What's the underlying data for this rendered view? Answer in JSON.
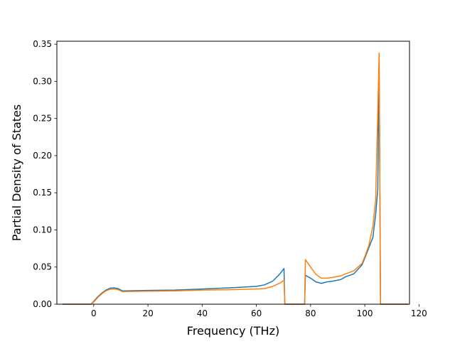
{
  "chart_data": {
    "type": "line",
    "xlabel": "Frequency (THz)",
    "ylabel": "Partial Density of States",
    "xlim": [
      -13.6,
      116.5
    ],
    "ylim": [
      0.0,
      0.354
    ],
    "xticks": [
      0,
      20,
      40,
      60,
      80,
      100,
      120
    ],
    "yticks": [
      0.0,
      0.05,
      0.1,
      0.15,
      0.2,
      0.25,
      0.3,
      0.35
    ],
    "xtick_labels": [
      "0",
      "20",
      "40",
      "60",
      "80",
      "100",
      "120"
    ],
    "ytick_labels": [
      "0.00",
      "0.05",
      "0.10",
      "0.15",
      "0.20",
      "0.25",
      "0.30",
      "0.35"
    ],
    "grid": false,
    "legend": "none",
    "series": [
      {
        "color": "#1f77b4",
        "points": [
          [
            -11.5,
            0.0
          ],
          [
            -1.0,
            0.0
          ],
          [
            0.0,
            0.004
          ],
          [
            1.5,
            0.01
          ],
          [
            3.0,
            0.015
          ],
          [
            4.5,
            0.019
          ],
          [
            6.0,
            0.0215
          ],
          [
            7.5,
            0.022
          ],
          [
            9.0,
            0.021
          ],
          [
            10.5,
            0.018
          ],
          [
            20,
            0.0185
          ],
          [
            30,
            0.019
          ],
          [
            40,
            0.0205
          ],
          [
            50,
            0.022
          ],
          [
            55,
            0.023
          ],
          [
            60,
            0.024
          ],
          [
            63,
            0.026
          ],
          [
            66,
            0.031
          ],
          [
            68.5,
            0.04
          ],
          [
            70.2,
            0.048
          ],
          [
            70.5,
            0.0
          ],
          [
            77.8,
            0.0
          ],
          [
            78.1,
            0.039
          ],
          [
            80,
            0.035
          ],
          [
            82,
            0.03
          ],
          [
            84,
            0.028
          ],
          [
            86,
            0.03
          ],
          [
            88,
            0.031
          ],
          [
            91,
            0.033
          ],
          [
            93,
            0.037
          ],
          [
            96,
            0.041
          ],
          [
            99,
            0.053
          ],
          [
            100,
            0.062
          ],
          [
            101.5,
            0.076
          ],
          [
            103,
            0.09
          ],
          [
            104,
            0.12
          ],
          [
            104.8,
            0.155
          ],
          [
            105.3,
            0.33
          ],
          [
            105.8,
            0.0
          ],
          [
            116,
            0.0
          ]
        ]
      },
      {
        "color": "#ff7f0e",
        "points": [
          [
            -11.5,
            0.0
          ],
          [
            -1.0,
            0.0
          ],
          [
            0.0,
            0.003
          ],
          [
            1.5,
            0.009
          ],
          [
            3.0,
            0.014
          ],
          [
            4.5,
            0.018
          ],
          [
            6.0,
            0.02
          ],
          [
            7.5,
            0.0205
          ],
          [
            9.0,
            0.0195
          ],
          [
            10.5,
            0.017
          ],
          [
            20,
            0.0175
          ],
          [
            30,
            0.018
          ],
          [
            40,
            0.019
          ],
          [
            50,
            0.0195
          ],
          [
            55,
            0.02
          ],
          [
            60,
            0.0205
          ],
          [
            63,
            0.021
          ],
          [
            66,
            0.024
          ],
          [
            68.5,
            0.028
          ],
          [
            70.2,
            0.032
          ],
          [
            70.5,
            0.0
          ],
          [
            77.8,
            0.0
          ],
          [
            78.1,
            0.06
          ],
          [
            80,
            0.05
          ],
          [
            82,
            0.04
          ],
          [
            84,
            0.035
          ],
          [
            86,
            0.035
          ],
          [
            88,
            0.036
          ],
          [
            91,
            0.038
          ],
          [
            93,
            0.041
          ],
          [
            96,
            0.045
          ],
          [
            99,
            0.055
          ],
          [
            100,
            0.064
          ],
          [
            101.5,
            0.079
          ],
          [
            103,
            0.105
          ],
          [
            104,
            0.14
          ],
          [
            104.8,
            0.26
          ],
          [
            105.3,
            0.338
          ],
          [
            105.8,
            0.0
          ],
          [
            116,
            0.0
          ]
        ]
      }
    ]
  }
}
